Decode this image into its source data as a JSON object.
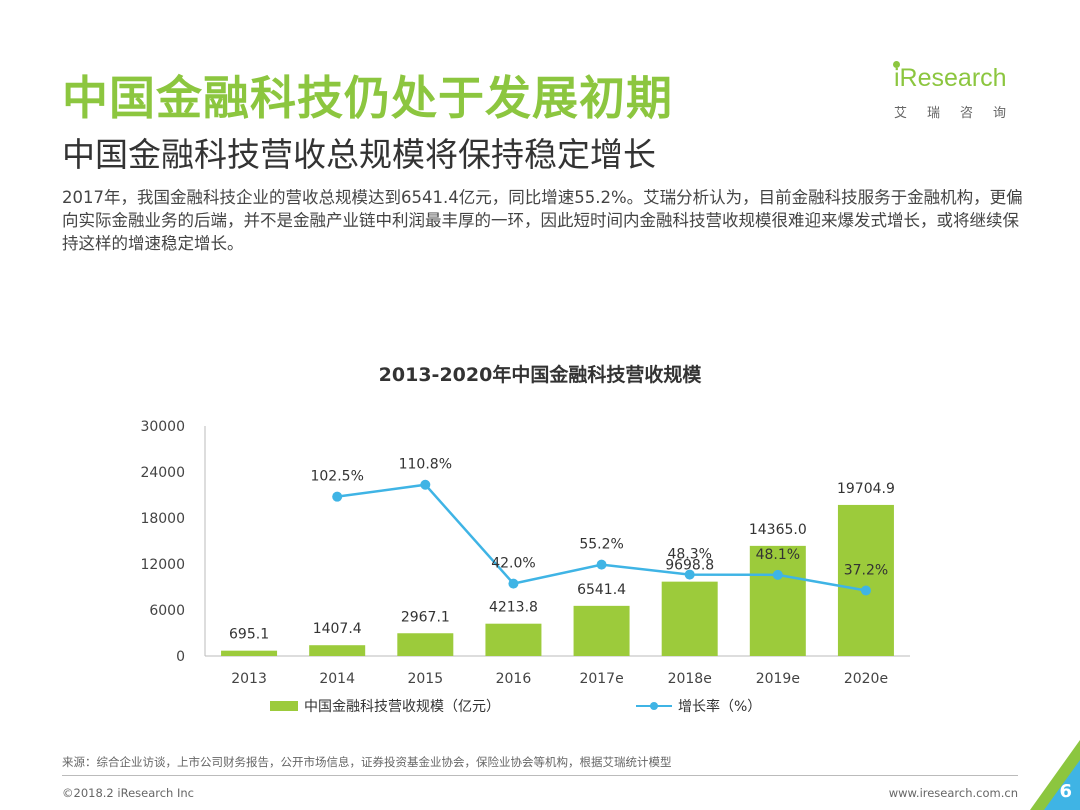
{
  "header": {
    "title": "中国金融科技仍处于发展初期",
    "subtitle": "中国金融科技营收总规模将保持稳定增长",
    "intro": "2017年，我国金融科技企业的营收总规模达到6541.4亿元，同比增速55.2%。艾瑞分析认为，目前金融科技服务于金融机构，更偏向实际金融业务的后端，并不是金融产业链中利润最丰厚的一环，因此短时间内金融科技营收规模很难迎来爆发式增长，或将继续保持这样的增速稳定增长。"
  },
  "logo": {
    "main": "iResearch",
    "sub": "艾瑞咨询"
  },
  "chart_data": {
    "type": "bar",
    "title": "2013-2020年中国金融科技营收规模",
    "categories": [
      "2013",
      "2014",
      "2015",
      "2016",
      "2017e",
      "2018e",
      "2019e",
      "2020e"
    ],
    "series": [
      {
        "name": "中国金融科技营收规模（亿元）",
        "type": "bar",
        "values": [
          695.1,
          1407.4,
          2967.1,
          4213.8,
          6541.4,
          9698.8,
          14365.0,
          19704.9
        ],
        "labels": [
          "695.1",
          "1407.4",
          "2967.1",
          "4213.8",
          "6541.4",
          "9698.8",
          "14365.0",
          "19704.9"
        ],
        "color": "#9ccb3b"
      },
      {
        "name": "增长率（%）",
        "type": "line",
        "values": [
          null,
          102.5,
          110.8,
          42.0,
          55.2,
          48.3,
          48.1,
          37.2
        ],
        "labels": [
          "",
          "102.5%",
          "110.8%",
          "42.0%",
          "55.2%",
          "48.3%",
          "48.1%",
          "37.2%"
        ],
        "color": "#3fb4e5"
      }
    ],
    "y_ticks": [
      "0",
      "6000",
      "12000",
      "18000",
      "24000",
      "30000"
    ],
    "ylim": [
      0,
      30000
    ],
    "grid": false,
    "legend": "bottom"
  },
  "legend": {
    "bar_label": "中国金融科技营收规模（亿元）",
    "line_label": "增长率（%）"
  },
  "footer": {
    "source": "来源：综合企业访谈，上市公司财务报告，公开市场信息，证券投资基金业协会，保险业协会等机构，根据艾瑞统计模型",
    "copyright": "©2018.2 iResearch Inc",
    "website": "www.iresearch.com.cn",
    "page": "6"
  }
}
